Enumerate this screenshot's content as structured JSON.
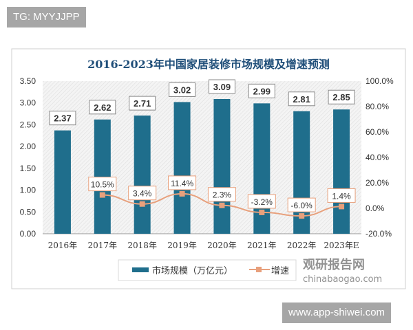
{
  "overlay": {
    "tag_text": "TG: MYYJJPP",
    "site_text": "www.app-shiwei.com"
  },
  "watermark": {
    "brand": "观研报告网",
    "domain": "chinabaogao.com"
  },
  "chart_data": {
    "type": "bar+line",
    "title": "2016-2023年中国家居装修市场规模及增速预测",
    "categories": [
      "2016年",
      "2017年",
      "2018年",
      "2019年",
      "2020年",
      "2021年",
      "2022年",
      "2023年E"
    ],
    "series": [
      {
        "name": "市场规模（万亿元）",
        "type": "bar",
        "axis": "left",
        "color": "#1f6e8c",
        "values": [
          2.37,
          2.62,
          2.71,
          3.02,
          3.09,
          2.99,
          2.81,
          2.85
        ],
        "labels": [
          "2.37",
          "2.62",
          "2.71",
          "3.02",
          "3.09",
          "2.99",
          "2.81",
          "2.85"
        ]
      },
      {
        "name": "增速",
        "type": "line",
        "axis": "right",
        "color": "#e8a07c",
        "values": [
          null,
          10.5,
          3.4,
          11.4,
          2.3,
          -3.2,
          -6.0,
          1.4
        ],
        "labels": [
          "",
          "10.5%",
          "3.4%",
          "11.4%",
          "2.3%",
          "-3.2%",
          "-6.0%",
          "1.4%"
        ]
      }
    ],
    "y_left": {
      "range": [
        0,
        3.5
      ],
      "ticks": [
        "0.00",
        "0.50",
        "1.00",
        "1.50",
        "2.00",
        "2.50",
        "3.00",
        "3.50"
      ]
    },
    "y_right": {
      "range": [
        -20,
        100
      ],
      "ticks": [
        "-20.0%",
        "0.0%",
        "20.0%",
        "40.0%",
        "60.0%",
        "80.0%",
        "100.0%"
      ]
    },
    "legend_position": "bottom",
    "grid": false
  }
}
